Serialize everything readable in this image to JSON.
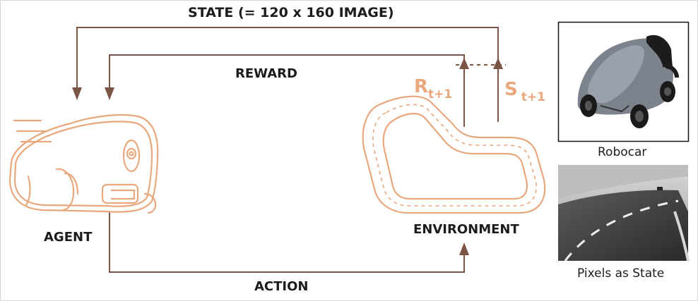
{
  "diagram": {
    "state_label": "STATE (= 120 x 160 IMAGE)",
    "reward_label": "REWARD",
    "action_label": "ACTION",
    "agent_label": "AGENT",
    "environment_label": "ENVIRONMENT",
    "reward_symbol": "R",
    "reward_subscript": "t+1",
    "state_symbol": "S",
    "state_subscript": "t+1"
  },
  "side_panel": {
    "robocar_caption": "Robocar",
    "pixels_caption": "Pixels as State"
  },
  "colors": {
    "arrow": "#7a5444",
    "illustration": "#e9a77e",
    "text": "#1c1c1c"
  }
}
